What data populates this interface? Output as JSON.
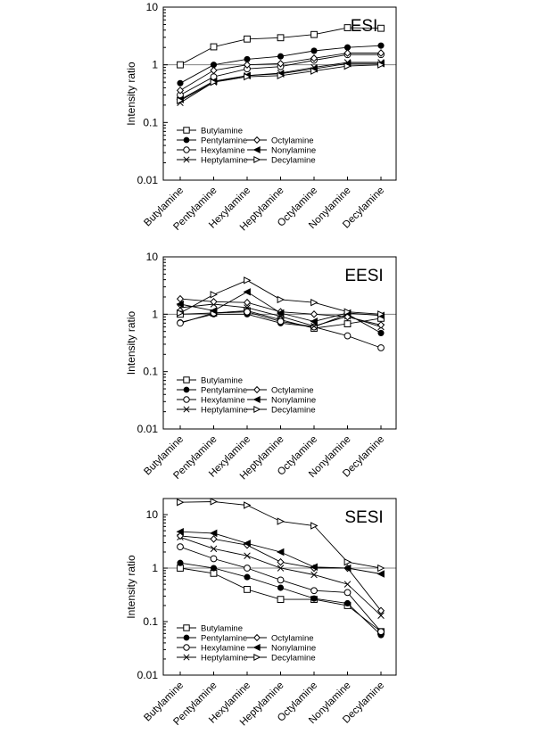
{
  "chart_data": [
    {
      "type": "line",
      "title": "ESI",
      "ylabel": "Intensity ratio",
      "xlabel": "",
      "yscale": "log",
      "ylim": [
        0.01,
        10
      ],
      "yticks": [
        "0.01",
        "0.1",
        "1",
        "10"
      ],
      "reference_line": 1,
      "legend_position": "lower-left",
      "categories": [
        "Butylamine",
        "Pentylamine",
        "Hexylamine",
        "Heptylamine",
        "Octylamine",
        "Nonylamine",
        "Decylamine"
      ],
      "series": [
        {
          "name": "Butylamine",
          "marker": "square-open",
          "values": [
            1.0,
            2.05,
            2.8,
            2.95,
            3.35,
            4.4,
            4.3
          ]
        },
        {
          "name": "Pentylamine",
          "marker": "circle-filled",
          "values": [
            0.48,
            1.0,
            1.25,
            1.4,
            1.75,
            2.0,
            2.15
          ]
        },
        {
          "name": "Hexylamine",
          "marker": "circle-open",
          "values": [
            0.3,
            0.62,
            0.85,
            0.93,
            1.2,
            1.5,
            1.5
          ]
        },
        {
          "name": "Heptylamine",
          "marker": "x",
          "values": [
            0.22,
            0.5,
            0.65,
            0.72,
            0.9,
            1.1,
            1.1
          ]
        },
        {
          "name": "Octylamine",
          "marker": "diamond-open",
          "values": [
            0.36,
            0.8,
            1.0,
            1.05,
            1.3,
            1.6,
            1.6
          ]
        },
        {
          "name": "Nonylamine",
          "marker": "triangle-left-filled",
          "values": [
            0.25,
            0.52,
            0.65,
            0.7,
            0.85,
            1.05,
            1.05
          ]
        },
        {
          "name": "Decylamine",
          "marker": "triangle-right-open",
          "values": [
            0.24,
            0.5,
            0.62,
            0.65,
            0.78,
            0.95,
            1.0
          ]
        }
      ]
    },
    {
      "type": "line",
      "title": "EESI",
      "ylabel": "Intensity ratio",
      "xlabel": "",
      "yscale": "log",
      "ylim": [
        0.01,
        10
      ],
      "yticks": [
        "0.01",
        "0.1",
        "1",
        "10"
      ],
      "reference_line": 1,
      "legend_position": "lower-left",
      "categories": [
        "Butylamine",
        "Pentylamine",
        "Hexylamine",
        "Heptylamine",
        "Octylamine",
        "Nonylamine",
        "Decylamine"
      ],
      "series": [
        {
          "name": "Butylamine",
          "marker": "square-open",
          "values": [
            1.0,
            1.05,
            1.15,
            0.8,
            0.57,
            0.68,
            0.85
          ]
        },
        {
          "name": "Pentylamine",
          "marker": "circle-filled",
          "values": [
            0.72,
            1.0,
            1.0,
            0.7,
            0.6,
            1.0,
            0.47
          ]
        },
        {
          "name": "Hexylamine",
          "marker": "circle-open",
          "values": [
            0.7,
            1.05,
            1.1,
            0.75,
            0.6,
            0.42,
            0.26
          ]
        },
        {
          "name": "Heptylamine",
          "marker": "x",
          "values": [
            1.3,
            1.5,
            1.3,
            0.92,
            0.62,
            0.92,
            0.6
          ]
        },
        {
          "name": "Octylamine",
          "marker": "diamond-open",
          "values": [
            1.85,
            1.65,
            1.6,
            1.1,
            1.0,
            0.9,
            0.65
          ]
        },
        {
          "name": "Nonylamine",
          "marker": "triangle-left-filled",
          "values": [
            1.5,
            1.15,
            2.45,
            1.05,
            0.75,
            1.05,
            0.95
          ]
        },
        {
          "name": "Decylamine",
          "marker": "triangle-right-open",
          "values": [
            1.05,
            2.2,
            3.9,
            1.8,
            1.6,
            1.1,
            1.0
          ]
        }
      ]
    },
    {
      "type": "line",
      "title": "SESI",
      "ylabel": "Intensity ratio",
      "xlabel": "",
      "yscale": "log",
      "ylim": [
        0.01,
        20
      ],
      "yticks": [
        "0.01",
        "0.1",
        "1",
        "10"
      ],
      "reference_line": 1,
      "legend_position": "lower-left",
      "categories": [
        "Butylamine",
        "Pentylamine",
        "Hexylamine",
        "Heptylamine",
        "Octylamine",
        "Nonylamine",
        "Decylamine"
      ],
      "series": [
        {
          "name": "Butylamine",
          "marker": "square-open",
          "values": [
            1.0,
            0.8,
            0.4,
            0.26,
            0.26,
            0.2,
            0.065
          ]
        },
        {
          "name": "Pentylamine",
          "marker": "circle-filled",
          "values": [
            1.25,
            1.0,
            0.68,
            0.43,
            0.27,
            0.22,
            0.056
          ]
        },
        {
          "name": "Hexylamine",
          "marker": "circle-open",
          "values": [
            2.5,
            1.5,
            1.0,
            0.6,
            0.38,
            0.35,
            0.065
          ]
        },
        {
          "name": "Heptylamine",
          "marker": "x",
          "values": [
            3.8,
            2.3,
            1.7,
            1.0,
            0.75,
            0.5,
            0.13
          ]
        },
        {
          "name": "Octylamine",
          "marker": "diamond-open",
          "values": [
            4.0,
            3.5,
            2.7,
            1.3,
            1.0,
            1.0,
            0.16
          ]
        },
        {
          "name": "Nonylamine",
          "marker": "triangle-left-filled",
          "values": [
            4.8,
            4.5,
            2.9,
            2.0,
            1.05,
            1.0,
            0.78
          ]
        },
        {
          "name": "Decylamine",
          "marker": "triangle-right-open",
          "values": [
            17.0,
            17.5,
            15.0,
            7.5,
            6.2,
            1.3,
            1.0
          ]
        }
      ]
    }
  ]
}
